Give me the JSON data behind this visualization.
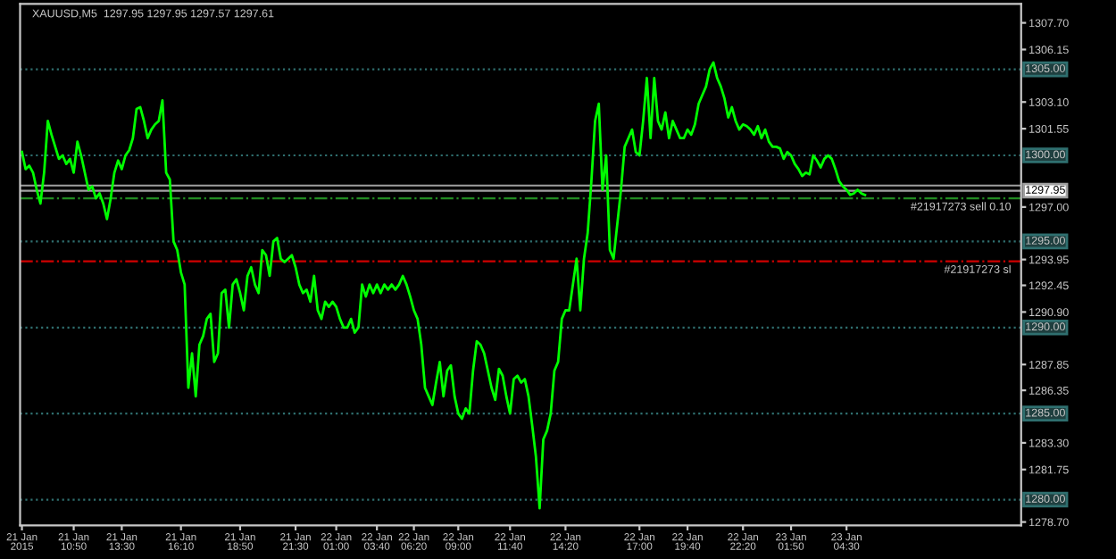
{
  "chart_data": {
    "type": "line",
    "title": "XAUUSD,M5  1297.95 1297.95 1297.57 1297.61",
    "series": [
      {
        "color": "#00ff00",
        "values": [
          1300.2,
          1299.2,
          1299.4,
          1299.0,
          1298.0,
          1297.2,
          1299.0,
          1302.0,
          1301.2,
          1300.5,
          1299.8,
          1300.0,
          1299.5,
          1299.8,
          1299.0,
          1300.8,
          1300.0,
          1299.0,
          1298.0,
          1298.2,
          1297.5,
          1297.8,
          1297.2,
          1296.3,
          1297.5,
          1299.0,
          1299.7,
          1299.2,
          1300.0,
          1300.3,
          1301.0,
          1302.7,
          1302.8,
          1302.0,
          1301.0,
          1301.5,
          1301.8,
          1302.0,
          1303.2,
          1299.0,
          1298.6,
          1295.0,
          1294.5,
          1293.2,
          1292.5,
          1286.5,
          1288.5,
          1286.0,
          1289.0,
          1289.5,
          1290.5,
          1290.8,
          1288.0,
          1288.5,
          1292.0,
          1292.2,
          1290.0,
          1292.5,
          1292.8,
          1292.0,
          1291.0,
          1293.0,
          1293.5,
          1292.5,
          1292.0,
          1294.5,
          1294.2,
          1293.0,
          1295.0,
          1295.2,
          1294.0,
          1293.8,
          1294.0,
          1294.2,
          1293.5,
          1292.5,
          1292.0,
          1292.2,
          1291.5,
          1293.0,
          1291.0,
          1290.5,
          1291.5,
          1291.2,
          1291.5,
          1291.2,
          1290.5,
          1290.0,
          1290.0,
          1290.5,
          1289.7,
          1290.0,
          1292.5,
          1291.8,
          1292.5,
          1292.0,
          1292.5,
          1292.0,
          1292.5,
          1292.2,
          1292.5,
          1292.2,
          1292.5,
          1293.0,
          1292.5,
          1291.8,
          1291.0,
          1290.5,
          1289.0,
          1286.5,
          1286.0,
          1285.5,
          1286.8,
          1288.0,
          1286.0,
          1287.5,
          1287.8,
          1286.0,
          1285.0,
          1284.7,
          1285.3,
          1285.0,
          1287.5,
          1289.2,
          1289.0,
          1288.5,
          1287.5,
          1286.5,
          1285.8,
          1287.6,
          1287.2,
          1286.0,
          1285.0,
          1287.0,
          1287.2,
          1286.8,
          1287.0,
          1286.0,
          1284.3,
          1282.5,
          1279.5,
          1283.5,
          1284.0,
          1285.0,
          1287.5,
          1288.0,
          1290.5,
          1291.0,
          1291.0,
          1292.5,
          1294.0,
          1291.0,
          1294.0,
          1295.5,
          1298.5,
          1302.0,
          1303.0,
          1298.0,
          1300.0,
          1294.5,
          1294.0,
          1296.0,
          1298.0,
          1300.5,
          1301.0,
          1301.5,
          1300.2,
          1300.0,
          1302.0,
          1304.5,
          1301.0,
          1304.5,
          1302.0,
          1301.5,
          1302.5,
          1301.0,
          1302.0,
          1301.5,
          1301.0,
          1301.0,
          1301.5,
          1301.2,
          1301.8,
          1303.0,
          1303.5,
          1304.0,
          1305.0,
          1305.4,
          1304.5,
          1304.0,
          1303.3,
          1302.2,
          1302.8,
          1302.0,
          1301.5,
          1301.8,
          1301.7,
          1301.5,
          1301.2,
          1301.7,
          1301.0,
          1301.5,
          1300.8,
          1300.5,
          1300.5,
          1300.4,
          1299.8,
          1300.2,
          1300.0,
          1299.5,
          1299.2,
          1298.8,
          1299.0,
          1298.9,
          1300.0,
          1299.7,
          1299.3,
          1299.8,
          1300.0,
          1299.8,
          1299.2,
          1298.5,
          1298.2,
          1298.0,
          1297.7,
          1297.8,
          1298.0,
          1297.8,
          1297.7
        ]
      }
    ],
    "categories": [
      "21 Jan 2015",
      null,
      null,
      null,
      null,
      null,
      null,
      null,
      null,
      null,
      null,
      null,
      null,
      null,
      "21 Jan 10:50",
      null,
      null,
      null,
      null,
      null,
      null,
      null,
      null,
      null,
      null,
      null,
      null,
      "21 Jan 13:30",
      null,
      null,
      null,
      null,
      null,
      null,
      null,
      null,
      null,
      null,
      null,
      null,
      null,
      null,
      null,
      "21 Jan 16:10",
      null,
      null,
      null,
      null,
      null,
      null,
      null,
      null,
      null,
      null,
      null,
      null,
      null,
      null,
      null,
      "21 Jan 18:50",
      null,
      null,
      null,
      null,
      null,
      null,
      null,
      null,
      null,
      null,
      null,
      null,
      null,
      null,
      "21 Jan 21:30",
      null,
      null,
      null,
      null,
      null,
      null,
      null,
      null,
      null,
      null,
      "22 Jan 01:00",
      null,
      null,
      null,
      null,
      null,
      null,
      null,
      null,
      null,
      null,
      "22 Jan 03:40",
      null,
      null,
      null,
      null,
      null,
      null,
      null,
      null,
      null,
      "22 Jan 06:20",
      null,
      null,
      null,
      null,
      null,
      null,
      null,
      null,
      null,
      null,
      null,
      "22 Jan 09:00",
      null,
      null,
      null,
      null,
      null,
      null,
      null,
      null,
      null,
      null,
      null,
      null,
      null,
      "22 Jan 11:40",
      null,
      null,
      null,
      null,
      null,
      null,
      null,
      null,
      null,
      null,
      null,
      null,
      null,
      null,
      "22 Jan 14:20",
      null,
      null,
      null,
      null,
      null,
      null,
      null,
      null,
      null,
      null,
      null,
      null,
      null,
      null,
      null,
      null,
      null,
      null,
      null,
      "22 Jan 17:00",
      null,
      null,
      null,
      null,
      null,
      null,
      null,
      null,
      null,
      null,
      null,
      null,
      "22 Jan 19:40",
      null,
      null,
      null,
      null,
      null,
      null,
      null,
      null,
      null,
      null,
      null,
      null,
      null,
      null,
      "22 Jan 22:20",
      null,
      null,
      null,
      null,
      null,
      null,
      null,
      null,
      null,
      null,
      null,
      null,
      "23 Jan 01:50",
      null,
      null,
      null,
      null,
      null,
      null,
      null,
      null,
      null,
      null,
      null,
      null,
      null,
      null,
      "23 Jan 04:30",
      null,
      null,
      null,
      null,
      null
    ],
    "ylim": [
      1278.5,
      1308.8
    ],
    "yticks": [
      {
        "value": 1307.7,
        "label": "1307.70"
      },
      {
        "value": 1306.15,
        "label": "1306.15"
      },
      {
        "value": 1303.1,
        "label": "1303.10"
      },
      {
        "value": 1301.55,
        "label": "1301.55"
      },
      {
        "value": 1297.0,
        "label": "1297.00"
      },
      {
        "value": 1293.95,
        "label": "1293.95"
      },
      {
        "value": 1292.45,
        "label": "1292.45"
      },
      {
        "value": 1290.9,
        "label": "1290.90"
      },
      {
        "value": 1287.85,
        "label": "1287.85"
      },
      {
        "value": 1286.35,
        "label": "1286.35"
      },
      {
        "value": 1283.3,
        "label": "1283.30"
      },
      {
        "value": 1281.75,
        "label": "1281.75"
      },
      {
        "value": 1278.7,
        "label": "1278.70"
      }
    ],
    "ref_lines": [
      {
        "axis": "y",
        "value": 1305,
        "label": "1305.00",
        "color": "#2f6f6f",
        "line_style": "dotted"
      },
      {
        "axis": "y",
        "value": 1300,
        "label": "1300.00",
        "color": "#2f6f6f",
        "line_style": "dotted"
      },
      {
        "axis": "y",
        "value": 1295,
        "label": "1295.00",
        "color": "#2f6f6f",
        "line_style": "dotted"
      },
      {
        "axis": "y",
        "value": 1290,
        "label": "1290.00",
        "color": "#2f6f6f",
        "line_style": "dotted"
      },
      {
        "axis": "y",
        "value": 1285,
        "label": "1285.00",
        "color": "#2f6f6f",
        "line_style": "dotted"
      },
      {
        "axis": "y",
        "value": 1280,
        "label": "1280.00",
        "color": "#2f6f6f",
        "line_style": "dotted"
      },
      {
        "axis": "y",
        "value": 1298.25,
        "color": "#a0a0a0",
        "line_style": "solid"
      },
      {
        "axis": "y",
        "value": 1297.95,
        "label": "1297.95",
        "color": "#a0a0a0",
        "line_style": "solid"
      },
      {
        "axis": "y",
        "value": 1297.5,
        "label": "#21917273 sell 0.10",
        "color": "#228b22",
        "line_style": "dashdot"
      },
      {
        "axis": "y",
        "value": 1293.85,
        "label": "#21917273 sl",
        "color": "#d00000",
        "line_style": "dashdot"
      }
    ],
    "grid": false,
    "legend": false,
    "marker": "none",
    "line_style": "solid"
  }
}
